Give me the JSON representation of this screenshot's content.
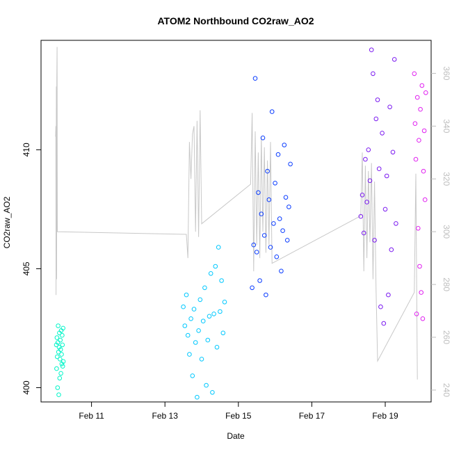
{
  "chart_data": {
    "type": "scatter",
    "title": "ATOM2 Northbound CO2raw_AO2",
    "xlabel": "Date",
    "ylabel": "CO2raw_AO2",
    "x_ticks": [
      "Feb 11",
      "Feb 13",
      "Feb 15",
      "Feb 17",
      "Feb 19"
    ],
    "y_ticks": [
      "400",
      "405",
      "410"
    ],
    "y2_ticks": [
      "240",
      "260",
      "280",
      "300",
      "320",
      "340",
      "360"
    ],
    "xlim": [
      "2023-02-09T15:00",
      "2023-02-20T06:00"
    ],
    "ylim": [
      399.4,
      414.6
    ],
    "y2lim": [
      235.5,
      372.5
    ],
    "colors": {
      "line_series": "#c8c8c8",
      "right_axis": "#bdbdbd",
      "days": [
        "#00f5c8",
        "#00c8ff",
        "#0a3cff",
        "#7a18f0",
        "#e020f0"
      ]
    },
    "series": [
      {
        "values": [
          [
            "2023-02-10T01:00",
            401.8
          ],
          [
            "2023-02-10T01:12",
            400.8
          ],
          [
            "2023-02-10T01:24",
            402.1
          ],
          [
            "2023-02-10T01:36",
            401.3
          ],
          [
            "2023-02-10T01:48",
            400.0
          ],
          [
            "2023-02-10T02:00",
            401.9
          ],
          [
            "2023-02-10T02:12",
            402.6
          ],
          [
            "2023-02-10T02:24",
            401.5
          ],
          [
            "2023-02-10T02:36",
            399.7
          ],
          [
            "2023-02-10T02:48",
            401.7
          ],
          [
            "2023-02-10T03:00",
            402.3
          ],
          [
            "2023-02-10T03:12",
            400.4
          ],
          [
            "2023-02-10T03:24",
            401.2
          ],
          [
            "2023-02-10T03:36",
            402.0
          ],
          [
            "2023-02-10T03:48",
            401.6
          ],
          [
            "2023-02-10T04:00",
            400.6
          ],
          [
            "2023-02-10T04:12",
            402.4
          ],
          [
            "2023-02-10T04:24",
            401.4
          ],
          [
            "2023-02-10T04:36",
            401.0
          ],
          [
            "2023-02-10T04:48",
            402.2
          ],
          [
            "2023-02-10T05:00",
            401.8
          ],
          [
            "2023-02-10T05:12",
            400.9
          ],
          [
            "2023-02-10T05:24",
            402.5
          ],
          [
            "2023-02-10T05:36",
            401.1
          ]
        ]
      },
      {
        "values": [
          [
            "2023-02-13T12:00",
            403.4
          ],
          [
            "2023-02-13T13:00",
            402.6
          ],
          [
            "2023-02-13T14:00",
            403.9
          ],
          [
            "2023-02-13T15:00",
            402.2
          ],
          [
            "2023-02-13T16:00",
            401.4
          ],
          [
            "2023-02-13T17:00",
            402.9
          ],
          [
            "2023-02-13T18:00",
            400.5
          ],
          [
            "2023-02-13T19:00",
            403.3
          ],
          [
            "2023-02-13T20:00",
            401.9
          ],
          [
            "2023-02-13T21:00",
            399.6
          ],
          [
            "2023-02-13T22:00",
            402.4
          ],
          [
            "2023-02-13T23:00",
            403.7
          ],
          [
            "2023-02-14T00:00",
            401.2
          ],
          [
            "2023-02-14T01:00",
            402.8
          ],
          [
            "2023-02-14T02:00",
            404.2
          ],
          [
            "2023-02-14T03:00",
            400.1
          ],
          [
            "2023-02-14T04:00",
            402.0
          ],
          [
            "2023-02-14T05:00",
            403.0
          ],
          [
            "2023-02-14T06:00",
            404.8
          ],
          [
            "2023-02-14T07:00",
            399.8
          ],
          [
            "2023-02-14T08:00",
            403.1
          ],
          [
            "2023-02-14T09:00",
            405.1
          ],
          [
            "2023-02-14T10:00",
            401.7
          ],
          [
            "2023-02-14T11:00",
            405.9
          ],
          [
            "2023-02-14T12:00",
            403.2
          ],
          [
            "2023-02-14T13:00",
            404.5
          ],
          [
            "2023-02-14T14:00",
            402.3
          ],
          [
            "2023-02-14T15:00",
            403.6
          ]
        ]
      },
      {
        "values": [
          [
            "2023-02-15T09:00",
            404.2
          ],
          [
            "2023-02-15T10:00",
            406.0
          ],
          [
            "2023-02-15T11:00",
            413.0
          ],
          [
            "2023-02-15T12:00",
            405.7
          ],
          [
            "2023-02-15T13:00",
            408.2
          ],
          [
            "2023-02-15T14:00",
            404.5
          ],
          [
            "2023-02-15T15:00",
            407.3
          ],
          [
            "2023-02-15T16:00",
            410.5
          ],
          [
            "2023-02-15T17:00",
            406.4
          ],
          [
            "2023-02-15T18:00",
            403.9
          ],
          [
            "2023-02-15T19:00",
            409.1
          ],
          [
            "2023-02-15T20:00",
            407.9
          ],
          [
            "2023-02-15T21:00",
            405.9
          ],
          [
            "2023-02-15T22:00",
            411.6
          ],
          [
            "2023-02-15T23:00",
            406.9
          ],
          [
            "2023-02-16T00:00",
            408.6
          ],
          [
            "2023-02-16T01:00",
            405.5
          ],
          [
            "2023-02-16T02:00",
            409.8
          ],
          [
            "2023-02-16T03:00",
            407.1
          ],
          [
            "2023-02-16T04:00",
            404.9
          ],
          [
            "2023-02-16T05:00",
            406.6
          ],
          [
            "2023-02-16T06:00",
            410.2
          ],
          [
            "2023-02-16T07:00",
            408.0
          ],
          [
            "2023-02-16T08:00",
            406.2
          ],
          [
            "2023-02-16T09:00",
            407.6
          ],
          [
            "2023-02-16T10:00",
            409.4
          ]
        ]
      },
      {
        "values": [
          [
            "2023-02-18T08:00",
            407.2
          ],
          [
            "2023-02-18T09:00",
            408.1
          ],
          [
            "2023-02-18T10:00",
            406.5
          ],
          [
            "2023-02-18T11:00",
            409.6
          ],
          [
            "2023-02-18T12:00",
            407.8
          ],
          [
            "2023-02-18T13:00",
            410.0
          ],
          [
            "2023-02-18T14:00",
            408.7
          ],
          [
            "2023-02-18T15:00",
            414.2
          ],
          [
            "2023-02-18T16:00",
            413.2
          ],
          [
            "2023-02-18T17:00",
            406.2
          ],
          [
            "2023-02-18T18:00",
            411.3
          ],
          [
            "2023-02-18T19:00",
            412.1
          ],
          [
            "2023-02-18T20:00",
            409.2
          ],
          [
            "2023-02-18T21:00",
            403.4
          ],
          [
            "2023-02-18T22:00",
            410.7
          ],
          [
            "2023-02-18T23:00",
            402.7
          ],
          [
            "2023-02-19T00:00",
            407.5
          ],
          [
            "2023-02-19T01:00",
            408.9
          ],
          [
            "2023-02-19T02:00",
            403.9
          ],
          [
            "2023-02-19T03:00",
            411.8
          ],
          [
            "2023-02-19T04:00",
            405.8
          ],
          [
            "2023-02-19T05:00",
            409.9
          ],
          [
            "2023-02-19T06:00",
            413.8
          ],
          [
            "2023-02-19T07:00",
            406.9
          ]
        ]
      },
      {
        "values": [
          [
            "2023-02-19T19:00",
            413.2
          ],
          [
            "2023-02-19T19:30",
            411.1
          ],
          [
            "2023-02-19T20:00",
            409.6
          ],
          [
            "2023-02-19T20:30",
            403.1
          ],
          [
            "2023-02-19T21:00",
            412.2
          ],
          [
            "2023-02-19T21:30",
            406.7
          ],
          [
            "2023-02-19T22:00",
            410.4
          ],
          [
            "2023-02-19T22:30",
            405.1
          ],
          [
            "2023-02-19T23:00",
            411.7
          ],
          [
            "2023-02-19T23:30",
            404.0
          ],
          [
            "2023-02-20T00:00",
            412.7
          ],
          [
            "2023-02-20T00:30",
            402.9
          ],
          [
            "2023-02-20T01:00",
            409.1
          ],
          [
            "2023-02-20T01:30",
            410.8
          ],
          [
            "2023-02-20T02:00",
            407.9
          ],
          [
            "2023-02-20T02:30",
            412.4
          ]
        ]
      }
    ],
    "line_series": [
      [
        "2023-02-10T00:30",
        336
      ],
      [
        "2023-02-10T00:40",
        340
      ],
      [
        "2023-02-10T00:50",
        276
      ],
      [
        "2023-02-10T01:00",
        355
      ],
      [
        "2023-02-10T01:10",
        282
      ],
      [
        "2023-02-10T01:20",
        358
      ],
      [
        "2023-02-10T01:30",
        370
      ],
      [
        "2023-02-10T01:40",
        300
      ],
      [
        "2023-02-13T14:00",
        299
      ],
      [
        "2023-02-13T15:00",
        290
      ],
      [
        "2023-02-13T16:00",
        334
      ],
      [
        "2023-02-13T17:00",
        320
      ],
      [
        "2023-02-13T18:00",
        337
      ],
      [
        "2023-02-13T19:00",
        340
      ],
      [
        "2023-02-13T20:00",
        300
      ],
      [
        "2023-02-13T21:00",
        342
      ],
      [
        "2023-02-13T22:00",
        298
      ],
      [
        "2023-02-13T23:00",
        346
      ],
      [
        "2023-02-14T00:00",
        303
      ],
      [
        "2023-02-15T08:00",
        318
      ],
      [
        "2023-02-15T09:00",
        345
      ],
      [
        "2023-02-15T10:00",
        285
      ],
      [
        "2023-02-15T11:00",
        338
      ],
      [
        "2023-02-15T12:00",
        295
      ],
      [
        "2023-02-15T13:00",
        330
      ],
      [
        "2023-02-15T14:00",
        290
      ],
      [
        "2023-02-15T15:00",
        336
      ],
      [
        "2023-02-15T16:00",
        300
      ],
      [
        "2023-02-15T17:00",
        332
      ],
      [
        "2023-02-15T18:00",
        292
      ],
      [
        "2023-02-15T19:00",
        327
      ],
      [
        "2023-02-15T20:00",
        295
      ],
      [
        "2023-02-15T21:00",
        334
      ],
      [
        "2023-02-15T22:00",
        288
      ],
      [
        "2023-02-18T08:00",
        306
      ],
      [
        "2023-02-18T09:00",
        330
      ],
      [
        "2023-02-18T10:00",
        285
      ],
      [
        "2023-02-18T11:00",
        325
      ],
      [
        "2023-02-18T12:00",
        290
      ],
      [
        "2023-02-18T13:00",
        323
      ],
      [
        "2023-02-18T14:00",
        296
      ],
      [
        "2023-02-18T15:00",
        326
      ],
      [
        "2023-02-18T16:00",
        282
      ],
      [
        "2023-02-18T17:00",
        319
      ],
      [
        "2023-02-18T18:00",
        278
      ],
      [
        "2023-02-18T19:00",
        251
      ],
      [
        "2023-02-19T19:00",
        277
      ],
      [
        "2023-02-19T20:00",
        322
      ],
      [
        "2023-02-19T21:00",
        244
      ]
    ]
  }
}
